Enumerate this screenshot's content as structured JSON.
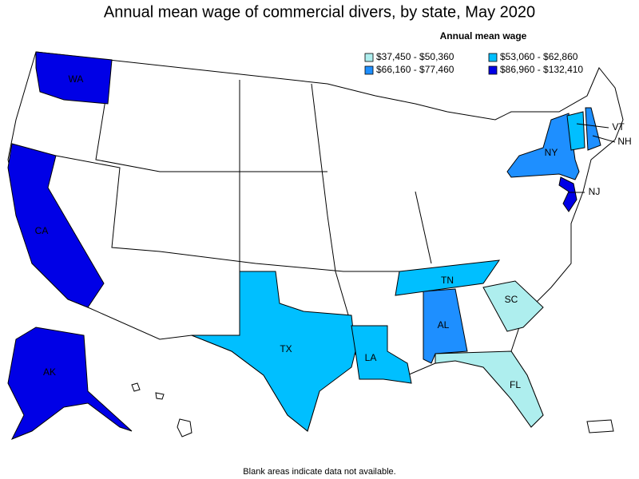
{
  "title": "Annual mean wage of commercial divers, by state, May 2020",
  "legend": {
    "title": "Annual mean wage",
    "items": [
      {
        "label": "$37,450 - $50,360",
        "color": "#aeeeee"
      },
      {
        "label": "$53,060 - $62,860",
        "color": "#00bfff"
      },
      {
        "label": "$66,160 - $77,460",
        "color": "#1e8fff"
      },
      {
        "label": "$86,960 - $132,410",
        "color": "#0000e6"
      }
    ]
  },
  "states": [
    {
      "abbr": "WA",
      "color": "#0000e6"
    },
    {
      "abbr": "CA",
      "color": "#0000e6"
    },
    {
      "abbr": "AK",
      "color": "#0000e6"
    },
    {
      "abbr": "TX",
      "color": "#00bfff"
    },
    {
      "abbr": "LA",
      "color": "#00bfff"
    },
    {
      "abbr": "AL",
      "color": "#1e8fff"
    },
    {
      "abbr": "TN",
      "color": "#00bfff"
    },
    {
      "abbr": "SC",
      "color": "#aeeeee"
    },
    {
      "abbr": "FL",
      "color": "#aeeeee"
    },
    {
      "abbr": "NY",
      "color": "#1e8fff"
    },
    {
      "abbr": "VT",
      "color": "#00bfff"
    },
    {
      "abbr": "NH",
      "color": "#1e8fff"
    },
    {
      "abbr": "NJ",
      "color": "#0000e6"
    }
  ],
  "footnote": "Blank areas indicate data not available."
}
